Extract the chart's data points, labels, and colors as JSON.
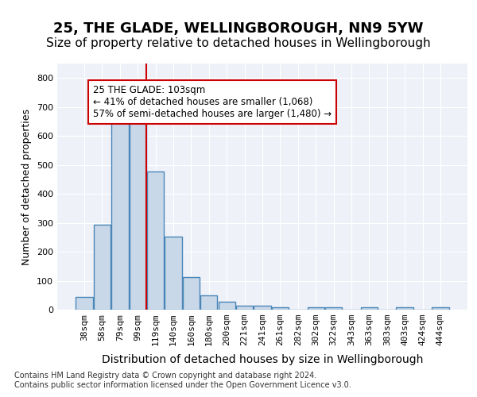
{
  "title": "25, THE GLADE, WELLINGBOROUGH, NN9 5YW",
  "subtitle": "Size of property relative to detached houses in Wellingborough",
  "xlabel": "Distribution of detached houses by size in Wellingborough",
  "ylabel": "Number of detached properties",
  "categories": [
    "38sqm",
    "58sqm",
    "79sqm",
    "99sqm",
    "119sqm",
    "140sqm",
    "160sqm",
    "180sqm",
    "200sqm",
    "221sqm",
    "241sqm",
    "261sqm",
    "282sqm",
    "302sqm",
    "322sqm",
    "343sqm",
    "363sqm",
    "383sqm",
    "403sqm",
    "424sqm",
    "444sqm"
  ],
  "values": [
    45,
    293,
    655,
    668,
    478,
    251,
    113,
    50,
    27,
    15,
    15,
    8,
    0,
    8,
    8,
    0,
    8,
    0,
    8,
    0,
    8
  ],
  "bar_color": "#c8d8e8",
  "bar_edge_color": "#4a86b8",
  "bar_linewidth": 1.0,
  "vline_x": 3.5,
  "vline_color": "#cc0000",
  "annotation_text": "25 THE GLADE: 103sqm\n← 41% of detached houses are smaller (1,068)\n57% of semi-detached houses are larger (1,480) →",
  "annotation_box_color": "#ffffff",
  "annotation_box_edge": "#cc0000",
  "ylim": [
    0,
    850
  ],
  "yticks": [
    0,
    100,
    200,
    300,
    400,
    500,
    600,
    700,
    800
  ],
  "background_color": "#eef2f8",
  "footer": "Contains HM Land Registry data © Crown copyright and database right 2024.\nContains public sector information licensed under the Open Government Licence v3.0.",
  "title_fontsize": 13,
  "subtitle_fontsize": 11,
  "xlabel_fontsize": 10,
  "ylabel_fontsize": 9,
  "tick_fontsize": 8,
  "annotation_fontsize": 8.5
}
